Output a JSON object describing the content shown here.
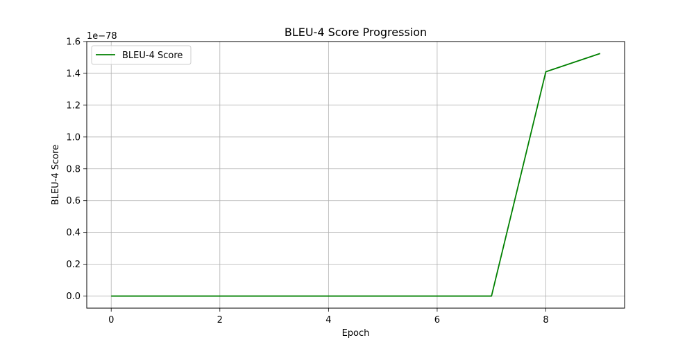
{
  "chart_data": {
    "type": "line",
    "title": "BLEU-4 Score Progression",
    "xlabel": "Epoch",
    "ylabel": "BLEU-4 Score",
    "y_offset_text": "1e−78",
    "xlim": [
      -0.45,
      9.45
    ],
    "ylim": [
      -0.076,
      1.6
    ],
    "x_ticks": [
      0,
      2,
      4,
      6,
      8
    ],
    "x_tick_labels": [
      "0",
      "2",
      "4",
      "6",
      "8"
    ],
    "y_ticks": [
      0.0,
      0.2,
      0.4,
      0.6,
      0.8,
      1.0,
      1.2,
      1.4,
      1.6
    ],
    "y_tick_labels": [
      "0.0",
      "0.2",
      "0.4",
      "0.6",
      "0.8",
      "1.0",
      "1.2",
      "1.4",
      "1.6"
    ],
    "grid": true,
    "legend_position": "upper left",
    "series": [
      {
        "name": "BLEU-4 Score",
        "color": "#008000",
        "x": [
          0,
          1,
          2,
          3,
          4,
          5,
          6,
          7,
          8,
          9
        ],
        "y": [
          0.0,
          0.0,
          0.0,
          0.0,
          0.0,
          0.0,
          0.0,
          0.0,
          1.41,
          1.525
        ]
      }
    ]
  }
}
